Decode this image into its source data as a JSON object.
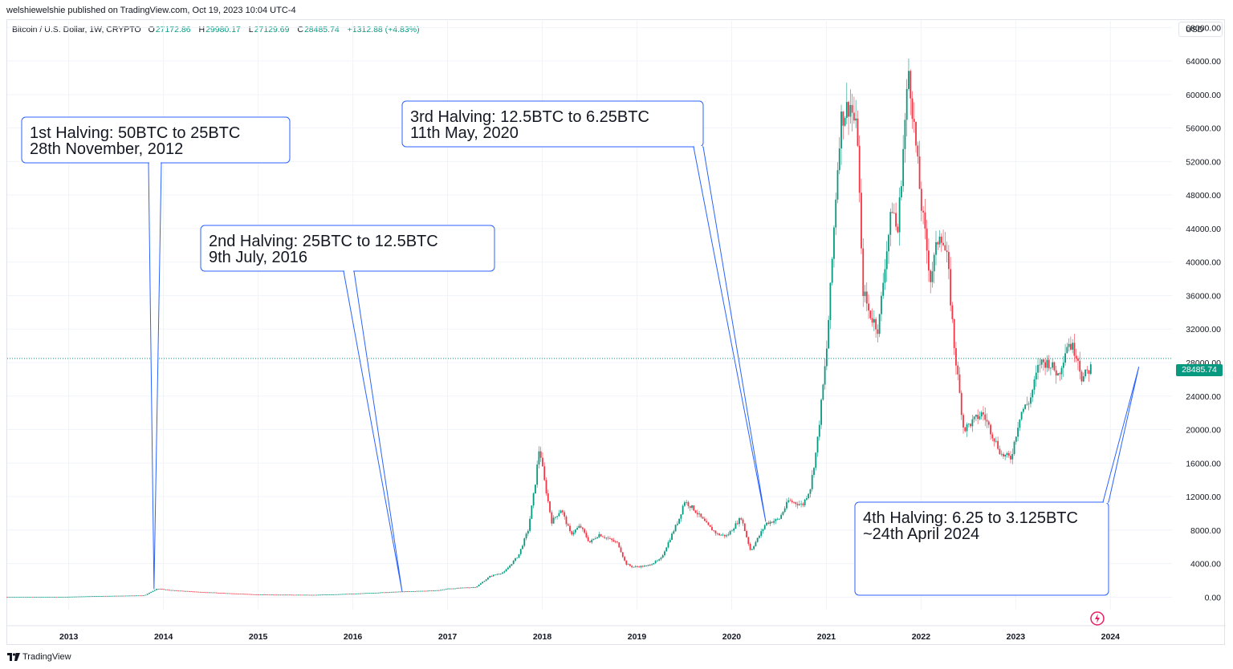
{
  "header": {
    "publisher_line": "welshiewelshie published on TradingView.com, Oct 19, 2023 10:04 UTC-4"
  },
  "legend": {
    "symbol": "Bitcoin / U.S. Dollar, 1W, CRYPTO",
    "open_label": "O",
    "open": "27172.86",
    "high_label": "H",
    "high": "29980.17",
    "low_label": "L",
    "low": "27129.69",
    "close_label": "C",
    "close": "28485.74",
    "change": "+1312.88 (+4.83%)"
  },
  "toolbar": {
    "currency": "USD"
  },
  "last_price_label": "28485.74",
  "footer": {
    "brand": "TradingView"
  },
  "colors": {
    "up": "#089981",
    "down": "#f23645",
    "annotation": "#2962ff",
    "grid": "#f0f3fa"
  },
  "icons": {
    "brand": "tradingview-logo-icon",
    "flash": "lightning-icon"
  },
  "chart_data": {
    "type": "candlestick",
    "xlabel": "",
    "ylabel": "",
    "xlim": [
      2012.35,
      2024.65
    ],
    "ylim": [
      -1500,
      68800
    ],
    "x_ticks": [
      "2013",
      "2014",
      "2015",
      "2016",
      "2017",
      "2018",
      "2019",
      "2020",
      "2021",
      "2022",
      "2023",
      "2024"
    ],
    "y_ticks": [
      "0.00",
      "4000.00",
      "8000.00",
      "12000.00",
      "16000.00",
      "20000.00",
      "24000.00",
      "28000.00",
      "32000.00",
      "36000.00",
      "40000.00",
      "44000.00",
      "48000.00",
      "52000.00",
      "56000.00",
      "60000.00",
      "64000.00",
      "68000.00"
    ],
    "last_price": 28485.74,
    "price_keypoints": [
      [
        2012.35,
        5
      ],
      [
        2012.9,
        12
      ],
      [
        2013.3,
        120
      ],
      [
        2013.8,
        200
      ],
      [
        2013.93,
        1000
      ],
      [
        2014.1,
        800
      ],
      [
        2014.4,
        600
      ],
      [
        2015.0,
        300
      ],
      [
        2015.6,
        260
      ],
      [
        2016.0,
        400
      ],
      [
        2016.5,
        650
      ],
      [
        2016.9,
        800
      ],
      [
        2017.0,
        1000
      ],
      [
        2017.3,
        1200
      ],
      [
        2017.45,
        2500
      ],
      [
        2017.6,
        3000
      ],
      [
        2017.75,
        5000
      ],
      [
        2017.85,
        8000
      ],
      [
        2017.92,
        13000
      ],
      [
        2017.97,
        18000
      ],
      [
        2018.02,
        14000
      ],
      [
        2018.1,
        9000
      ],
      [
        2018.2,
        10500
      ],
      [
        2018.3,
        7500
      ],
      [
        2018.4,
        8500
      ],
      [
        2018.5,
        6500
      ],
      [
        2018.6,
        7500
      ],
      [
        2018.8,
        6400
      ],
      [
        2018.88,
        4000
      ],
      [
        2018.95,
        3600
      ],
      [
        2019.1,
        3700
      ],
      [
        2019.25,
        4500
      ],
      [
        2019.35,
        7000
      ],
      [
        2019.45,
        9500
      ],
      [
        2019.5,
        11500
      ],
      [
        2019.6,
        10500
      ],
      [
        2019.75,
        8500
      ],
      [
        2019.85,
        7500
      ],
      [
        2019.95,
        7300
      ],
      [
        2020.1,
        9500
      ],
      [
        2020.2,
        5500
      ],
      [
        2020.3,
        7500
      ],
      [
        2020.36,
        8800
      ],
      [
        2020.5,
        9300
      ],
      [
        2020.6,
        11500
      ],
      [
        2020.75,
        11000
      ],
      [
        2020.83,
        13000
      ],
      [
        2020.9,
        18000
      ],
      [
        2021.0,
        29000
      ],
      [
        2021.05,
        38000
      ],
      [
        2021.1,
        48000
      ],
      [
        2021.15,
        57000
      ],
      [
        2021.25,
        59000
      ],
      [
        2021.33,
        55000
      ],
      [
        2021.38,
        37000
      ],
      [
        2021.45,
        34000
      ],
      [
        2021.55,
        32000
      ],
      [
        2021.62,
        40000
      ],
      [
        2021.7,
        47000
      ],
      [
        2021.75,
        43000
      ],
      [
        2021.82,
        55000
      ],
      [
        2021.87,
        63000
      ],
      [
        2021.92,
        57000
      ],
      [
        2022.0,
        47000
      ],
      [
        2022.1,
        38000
      ],
      [
        2022.2,
        44000
      ],
      [
        2022.28,
        40000
      ],
      [
        2022.35,
        30000
      ],
      [
        2022.45,
        20000
      ],
      [
        2022.55,
        21000
      ],
      [
        2022.65,
        22000
      ],
      [
        2022.75,
        19500
      ],
      [
        2022.85,
        17000
      ],
      [
        2022.95,
        16600
      ],
      [
        2023.05,
        22000
      ],
      [
        2023.15,
        23500
      ],
      [
        2023.25,
        28000
      ],
      [
        2023.35,
        28000
      ],
      [
        2023.45,
        26500
      ],
      [
        2023.55,
        30500
      ],
      [
        2023.65,
        29000
      ],
      [
        2023.7,
        26000
      ],
      [
        2023.8,
        27500
      ],
      [
        2023.8,
        28485.74
      ]
    ],
    "annotations": [
      {
        "title": "1st Halving: 50BTC to 25BTC",
        "date": "28th November, 2012",
        "x": 2013.9,
        "y": 950
      },
      {
        "title": "2nd Halving: 25BTC to 12.5BTC",
        "date": "9th July, 2016",
        "x": 2016.52,
        "y": 650
      },
      {
        "title": "3rd Halving: 12.5BTC to 6.25BTC",
        "date": "11th May, 2020",
        "x": 2020.36,
        "y": 9000
      },
      {
        "title": "4th Halving: 6.25 to 3.125BTC",
        "date": "~24th April 2024",
        "x": 2024.3,
        "y": 27500
      }
    ]
  }
}
